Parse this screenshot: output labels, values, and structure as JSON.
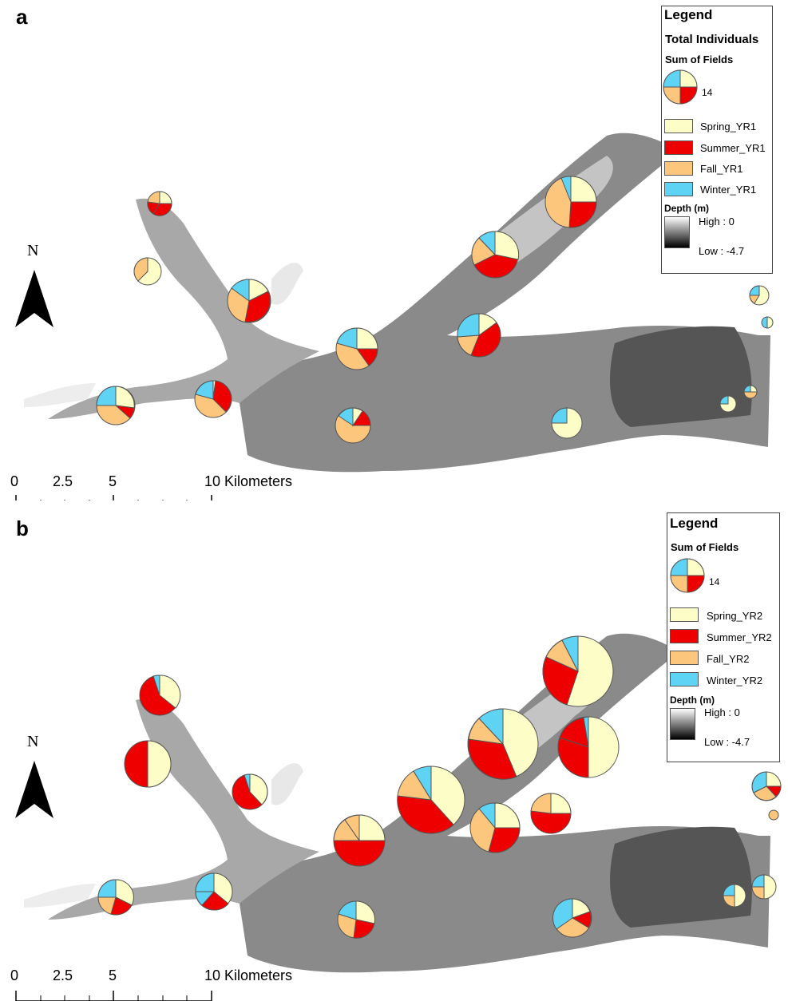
{
  "panels": [
    {
      "letter": "a",
      "legend": {
        "title": "Legend",
        "subtitle": "Total Individuals",
        "sum_label": "Sum of Fields",
        "size_value": "14",
        "classes": [
          {
            "label": "Spring_YR1",
            "color": "#fdfdc7"
          },
          {
            "label": "Summer_YR1",
            "color": "#ee0000"
          },
          {
            "label": "Fall_YR1",
            "color": "#fdc67d"
          },
          {
            "label": "Winter_YR1",
            "color": "#5fd3f3"
          }
        ],
        "depth_title": "Depth (m)",
        "depth_high": "High : 0",
        "depth_low": "Low : -4.7"
      },
      "scale": {
        "ticks": [
          "0",
          "2.5",
          "5",
          "10 Kilometers"
        ]
      },
      "north": "N"
    },
    {
      "letter": "b",
      "legend": {
        "title": "Legend",
        "subtitle": "",
        "sum_label": "Sum of Fields",
        "size_value": "14",
        "classes": [
          {
            "label": "Spring_YR2",
            "color": "#fdfdc7"
          },
          {
            "label": "Summer_YR2",
            "color": "#ee0000"
          },
          {
            "label": "Fall_YR2",
            "color": "#fdc67d"
          },
          {
            "label": "Winter_YR2",
            "color": "#5fd3f3"
          }
        ],
        "depth_title": "Depth (m)",
        "depth_high": "High : 0",
        "depth_low": "Low : -4.7"
      },
      "scale": {
        "ticks": [
          "0",
          "2.5",
          "5",
          "10 Kilometers"
        ]
      },
      "north": "N"
    }
  ]
}
